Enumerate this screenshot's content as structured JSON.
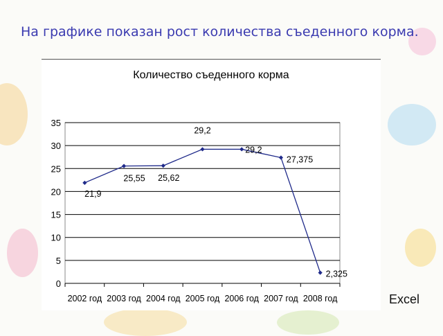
{
  "slide": {
    "title": "На графике показан рост количества съеденного корма.",
    "footer": "Excel"
  },
  "chart_data": {
    "type": "line",
    "title": "Количество съеденного корма",
    "categories": [
      "2002 год",
      "2003 год",
      "2004 год",
      "2005 год",
      "2006 год",
      "2007 год",
      "2008 год"
    ],
    "series": [
      {
        "values": [
          21.9,
          25.55,
          25.62,
          29.2,
          29.2,
          27.375,
          2.325
        ],
        "labels": [
          "21,9",
          "25,55",
          "25,62",
          "29,2",
          "29,2",
          "27,375",
          "2,325"
        ]
      }
    ],
    "y_ticks": [
      "0",
      "5",
      "10",
      "15",
      "20",
      "25",
      "30",
      "35"
    ],
    "ylim": [
      0,
      35
    ],
    "grid": true,
    "legend": "none",
    "colors": {
      "line": "#1f2a8a",
      "grid": "#000000"
    }
  }
}
